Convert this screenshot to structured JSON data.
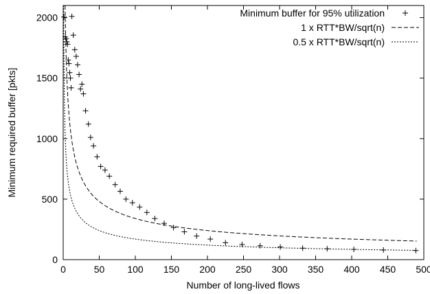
{
  "chart_data": {
    "type": "scatter",
    "title": "",
    "xlabel": "Number of long-lived flows",
    "ylabel": "Minimum required buffer [pkts]",
    "xlim": [
      0,
      500
    ],
    "ylim": [
      0,
      2100
    ],
    "xticks": [
      0,
      50,
      100,
      150,
      200,
      250,
      300,
      350,
      400,
      450,
      500
    ],
    "yticks": [
      0,
      500,
      1000,
      1500,
      2000
    ],
    "grid": false,
    "legend_position": "top-right",
    "series": [
      {
        "name": "Minimum buffer for 95% utilization",
        "marker": "plus",
        "points": [
          [
            1,
            2005
          ],
          [
            3,
            1840
          ],
          [
            4,
            1825
          ],
          [
            5,
            1800
          ],
          [
            6,
            1780
          ],
          [
            7,
            1650
          ],
          [
            8,
            1620
          ],
          [
            9,
            1545
          ],
          [
            10,
            1500
          ],
          [
            11,
            1420
          ],
          [
            12,
            2010
          ],
          [
            14,
            1855
          ],
          [
            16,
            1735
          ],
          [
            18,
            1680
          ],
          [
            20,
            1610
          ],
          [
            22,
            1530
          ],
          [
            24,
            1410
          ],
          [
            26,
            1450
          ],
          [
            28,
            1370
          ],
          [
            31,
            1230
          ],
          [
            35,
            1120
          ],
          [
            38,
            1010
          ],
          [
            42,
            940
          ],
          [
            47,
            850
          ],
          [
            52,
            770
          ],
          [
            58,
            740
          ],
          [
            64,
            690
          ],
          [
            72,
            620
          ],
          [
            79,
            565
          ],
          [
            87,
            500
          ],
          [
            96,
            470
          ],
          [
            106,
            435
          ],
          [
            116,
            390
          ],
          [
            127,
            340
          ],
          [
            140,
            300
          ],
          [
            153,
            265
          ],
          [
            168,
            230
          ],
          [
            185,
            195
          ],
          [
            204,
            170
          ],
          [
            225,
            140
          ],
          [
            248,
            125
          ],
          [
            273,
            115
          ],
          [
            301,
            105
          ],
          [
            332,
            95
          ],
          [
            366,
            90
          ],
          [
            403,
            85
          ],
          [
            444,
            80
          ],
          [
            489,
            75
          ]
        ]
      },
      {
        "name": "1 x RTT*BW/sqrt(n)",
        "style": "dashed",
        "coefficient": 1
      },
      {
        "name": "0.5 x RTT*BW/sqrt(n)",
        "style": "dotted",
        "coefficient": 0.5
      }
    ],
    "rtt_bw_pkts": 3400
  }
}
